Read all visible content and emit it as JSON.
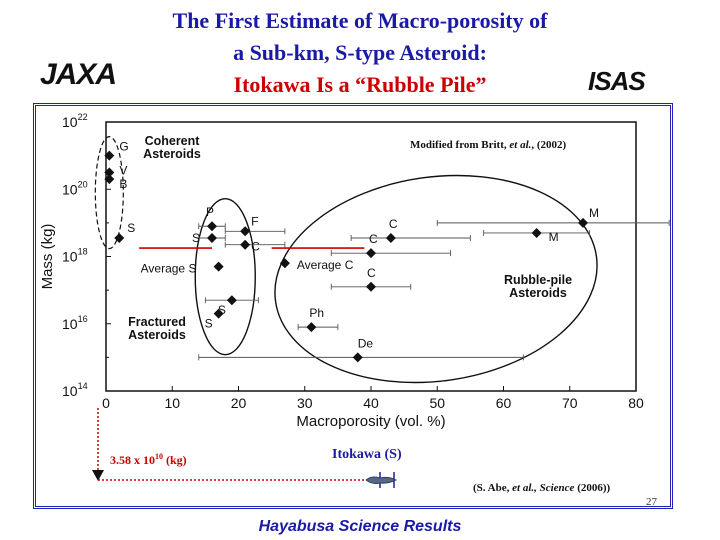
{
  "slide": {
    "title_line1": "The First Estimate of Macro-porosity of",
    "title_line2": "a Sub-km, S-type Asteroid:",
    "title_line3": "Itokawa Is a “Rubble Pile”",
    "logo_left": "JAXA",
    "logo_right": "ISAS",
    "footer": "Hayabusa Science Results",
    "page_number": "27",
    "source_note_prefix": "Modified from Britt, ",
    "source_note_italic": "et al.",
    "source_note_suffix": ", (2002)",
    "citation_prefix": "(S. Abe, ",
    "citation_italic1": "et al., Science",
    "citation_suffix": " (2006))",
    "itokawa_label": "Itokawa (S)",
    "itokawa_mass_label": "3.58 x  10",
    "itokawa_mass_exp": "10",
    "itokawa_mass_unit": " (kg)",
    "colors": {
      "title": "#1a1aa6",
      "subtitle_red": "#cc0000",
      "frame": "#2222bb",
      "marker": "#111111",
      "red_line": "#cc0000"
    }
  },
  "chart_data": {
    "type": "scatter",
    "xlabel": "Macroporosity (vol. %)",
    "ylabel": "Mass (kg)",
    "xlim": [
      0,
      80
    ],
    "ylim_log10": [
      14,
      22
    ],
    "x_ticks": [
      "0",
      "10",
      "20",
      "30",
      "40",
      "50",
      "60",
      "70",
      "80"
    ],
    "y_ticks": [
      {
        "base": "10",
        "exp": "14",
        "log": 14
      },
      {
        "base": "10",
        "exp": "16",
        "log": 16
      },
      {
        "base": "10",
        "exp": "18",
        "log": 18
      },
      {
        "base": "10",
        "exp": "20",
        "log": 20
      },
      {
        "base": "10",
        "exp": "22",
        "log": 22
      }
    ],
    "points": [
      {
        "label": "G",
        "x": 0.5,
        "log_mass": 21.0,
        "err_minus": 0,
        "err_plus": 0
      },
      {
        "label": "V",
        "x": 0.5,
        "log_mass": 20.5,
        "err_minus": 0,
        "err_plus": 0
      },
      {
        "label": "B",
        "x": 0.5,
        "log_mass": 20.3,
        "err_minus": 0,
        "err_plus": 0
      },
      {
        "label": "S",
        "x": 2.0,
        "log_mass": 18.55,
        "err_minus": 0,
        "err_plus": 0
      },
      {
        "label": "P",
        "x": 16.0,
        "log_mass": 18.9,
        "err_minus": 2,
        "err_plus": 2
      },
      {
        "label": "S",
        "x": 16.0,
        "log_mass": 18.55,
        "err_minus": 2,
        "err_plus": 2
      },
      {
        "label": "F",
        "x": 21.0,
        "log_mass": 18.75,
        "err_minus": 3,
        "err_plus": 6
      },
      {
        "label": "C",
        "x": 21.0,
        "log_mass": 18.35,
        "err_minus": 3,
        "err_plus": 6
      },
      {
        "label": "Average S",
        "x": 17.0,
        "log_mass": 17.7,
        "err_minus": 0,
        "err_plus": 0
      },
      {
        "label": "S",
        "x": 19.0,
        "log_mass": 16.7,
        "err_minus": 4,
        "err_plus": 4
      },
      {
        "label": "S",
        "x": 17.0,
        "log_mass": 16.3,
        "err_minus": 0,
        "err_plus": 0
      },
      {
        "label": "Average C",
        "x": 27.0,
        "log_mass": 17.8,
        "err_minus": 0,
        "err_plus": 0
      },
      {
        "label": "C",
        "x": 43.0,
        "log_mass": 18.55,
        "err_minus": 6,
        "err_plus": 12
      },
      {
        "label": "C",
        "x": 40.0,
        "log_mass": 18.1,
        "err_minus": 6,
        "err_plus": 12
      },
      {
        "label": "C",
        "x": 40.0,
        "log_mass": 17.1,
        "err_minus": 6,
        "err_plus": 6
      },
      {
        "label": "M",
        "x": 72.0,
        "log_mass": 19.0,
        "err_minus": 22,
        "err_plus": 13
      },
      {
        "label": "M",
        "x": 65.0,
        "log_mass": 18.7,
        "err_minus": 8,
        "err_plus": 8
      },
      {
        "label": "Ph",
        "x": 31.0,
        "log_mass": 15.9,
        "err_minus": 2,
        "err_plus": 4
      },
      {
        "label": "De",
        "x": 38.0,
        "log_mass": 15.0,
        "err_minus": 24,
        "err_plus": 25
      }
    ],
    "regions": [
      {
        "label_line1": "Coherent",
        "label_line2": "Asteroids"
      },
      {
        "label_line1": "Fractured",
        "label_line2": "Asteroids"
      },
      {
        "label_line1": "Rubble-pile",
        "label_line2": "Asteroids"
      }
    ],
    "red_lines_log_mass": 18.25,
    "red_line_segments_x": [
      [
        5,
        16
      ],
      [
        25,
        39
      ]
    ]
  }
}
